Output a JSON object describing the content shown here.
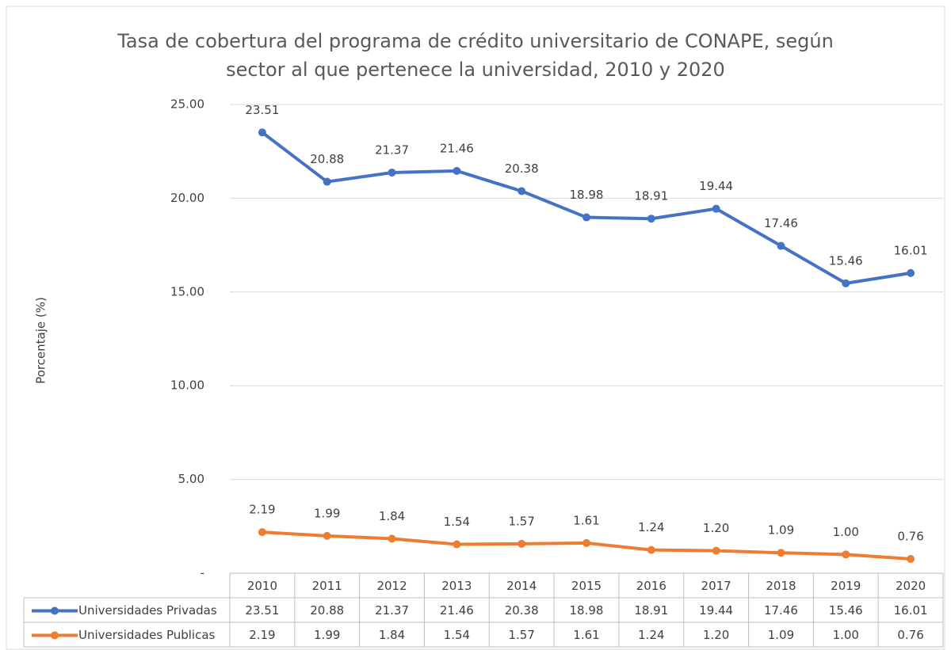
{
  "chart_data": {
    "type": "line",
    "title": "Tasa de cobertura del programa de crédito universitario de CONAPE, según sector al que pertenece la universidad, 2010 y 2020",
    "y_label": "Porcentaje (%)",
    "categories": [
      "2010",
      "2011",
      "2012",
      "2013",
      "2014",
      "2015",
      "2016",
      "2017",
      "2018",
      "2019",
      "2020"
    ],
    "series": [
      {
        "name": "Universidades Privadas",
        "color": "#4472c4",
        "values": [
          23.51,
          20.88,
          21.37,
          21.46,
          20.38,
          18.98,
          18.91,
          19.44,
          17.46,
          15.46,
          16.01
        ],
        "value_labels": [
          "23.51",
          "20.88",
          "21.37",
          "21.46",
          "20.38",
          "18.98",
          "18.91",
          "19.44",
          "17.46",
          "15.46",
          "16.01"
        ]
      },
      {
        "name": "Universidades Publicas",
        "color": "#ed7d31",
        "values": [
          2.19,
          1.99,
          1.84,
          1.54,
          1.57,
          1.61,
          1.24,
          1.2,
          1.09,
          1,
          0.76
        ],
        "value_labels": [
          "2.19",
          "1.99",
          "1.84",
          "1.54",
          "1.57",
          "1.61",
          "1.24",
          "1.20",
          "1.09",
          "1.00",
          "0.76"
        ]
      }
    ],
    "ylim": [
      0,
      25
    ],
    "yticks": [
      {
        "value": 0,
        "label": "-"
      },
      {
        "value": 5,
        "label": "5.00"
      },
      {
        "value": 10,
        "label": "10.00"
      },
      {
        "value": 15,
        "label": "15.00"
      },
      {
        "value": 20,
        "label": "20.00"
      },
      {
        "value": 25,
        "label": "25.00"
      }
    ],
    "grid": true
  }
}
